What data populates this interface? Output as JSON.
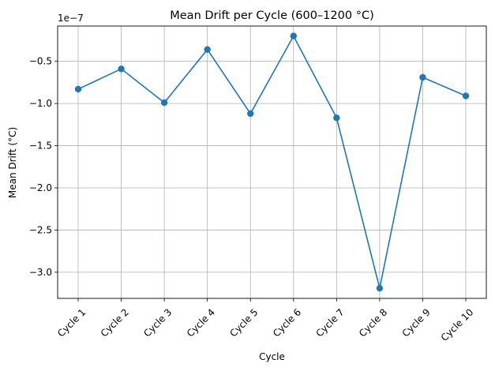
{
  "chart_data": {
    "type": "line",
    "title": "Mean Drift per Cycle (600–1200 °C)",
    "xlabel": "Cycle",
    "ylabel": "Mean Drift (°C)",
    "offset_label": "1e−7",
    "categories": [
      "Cycle 1",
      "Cycle 2",
      "Cycle 3",
      "Cycle 4",
      "Cycle 5",
      "Cycle 6",
      "Cycle 7",
      "Cycle 8",
      "Cycle 9",
      "Cycle 10"
    ],
    "series": [
      {
        "values": [
          -8.3e-08,
          -5.9e-08,
          -9.9e-08,
          -3.6e-08,
          -1.12e-07,
          -2e-08,
          -1.17e-07,
          -3.19e-07,
          -6.9e-08,
          -9.1e-08
        ]
      }
    ],
    "ylim": [
      -3.31e-07,
      -8.2e-09
    ],
    "yticks": [
      -5e-08,
      -1e-07,
      -1.5e-07,
      -2e-07,
      -2.5e-07,
      -3e-07
    ],
    "ytick_labels": [
      "−0.5",
      "−1.0",
      "−1.5",
      "−2.0",
      "−2.5",
      "−3.0"
    ],
    "grid": true,
    "line_color": "#1f77b4",
    "grid_color": "#b0b0b0"
  }
}
